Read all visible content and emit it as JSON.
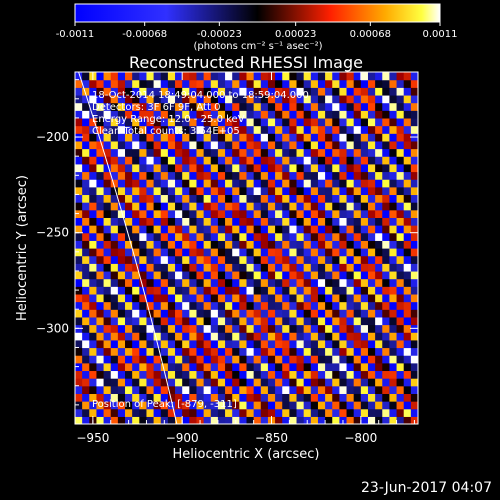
{
  "colorbar": {
    "ticks": [
      "-0.0011",
      "-0.00068",
      "-0.00023",
      "0.00023",
      "0.00068",
      "0.0011"
    ],
    "units": "(photons cm⁻² s⁻¹ asec⁻²)",
    "range": [
      -0.0011,
      0.0011
    ]
  },
  "chart_data": {
    "type": "heatmap",
    "title": "Reconstructed RHESSI Image",
    "xlabel": "Heliocentric X (arcsec)",
    "ylabel": "Heliocentric Y (arcsec)",
    "xlim": [
      -960,
      -768
    ],
    "ylim": [
      -350,
      -166
    ],
    "xticks": [
      -950,
      -900,
      -850,
      -800
    ],
    "yticks": [
      -200,
      -250,
      -300
    ],
    "xtick_labels": [
      "−950",
      "−900",
      "−850",
      "−800"
    ],
    "ytick_labels": [
      "−200",
      "−250",
      "−300"
    ],
    "grid": false,
    "pattern": "diagonal stripes, period ~11 arcsec, oriented upper-left to lower-right",
    "colormap": [
      "#0000ff",
      "#000000",
      "#ff0000",
      "#ffff00",
      "#ffffff"
    ],
    "limb_curve": [
      [
        -958,
        -166
      ],
      [
        -925,
        -260
      ],
      [
        -903,
        -350
      ]
    ],
    "annotations": [
      "18-Oct-2014 18:49:04.000 to 18:59:04.000",
      "Detectors: 3F 6F 9F, Att 0",
      "Energy Range: 12.0 - 25.0 keV",
      "Clean    Total counts: 3.54E+05",
      "Position of Peak: [-879, -311]"
    ]
  },
  "timestamp": "23-Jun-2017 04:07"
}
